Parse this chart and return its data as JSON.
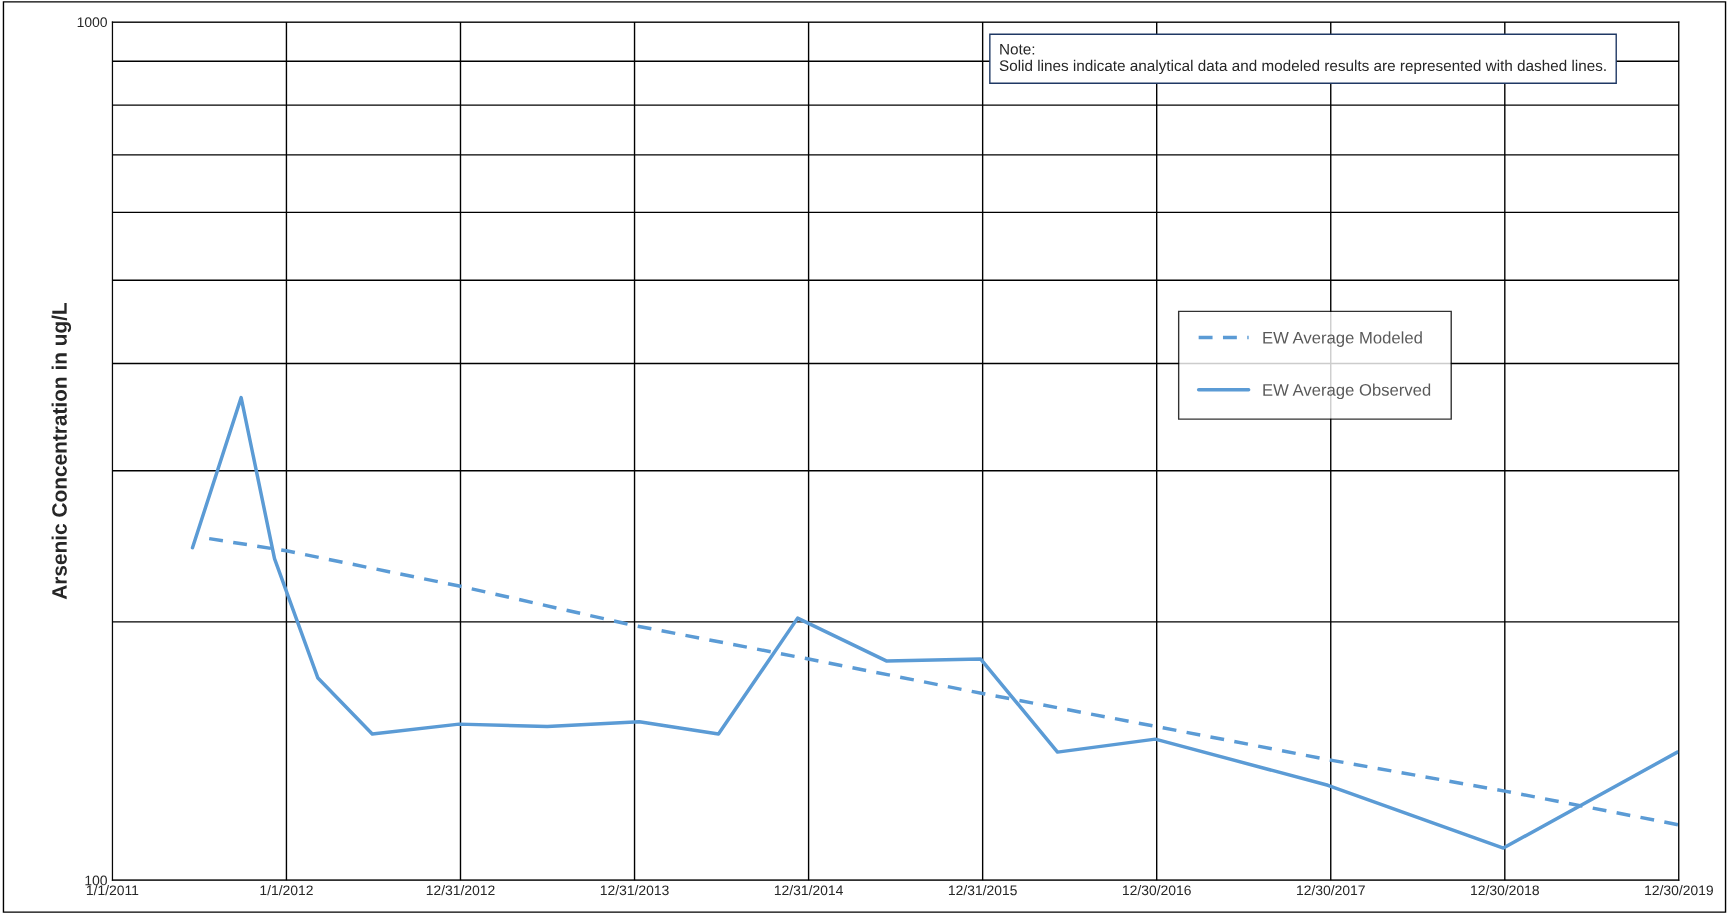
{
  "chart_data": {
    "type": "line",
    "ylabel": "Arsenic Concentration in ug/L",
    "annotations": [
      "Note:\nSolid lines indicate analytical data and modeled results are represented with dashed lines."
    ],
    "series": [
      {
        "name": "EW Average Modeled",
        "color": "#5b9bd5",
        "line_style": "dashed",
        "x": [
          "2011-07-23",
          "2012-01-01",
          "2012-12-31",
          "2013-12-31",
          "2014-12-31",
          "2015-12-31",
          "2016-12-30",
          "2017-12-30",
          "2018-12-30",
          "2019-12-30"
        ],
        "values": [
          250,
          242,
          220,
          198,
          181,
          165,
          151,
          138,
          127,
          116
        ]
      },
      {
        "name": "EW Average Observed",
        "color": "#5b9bd5",
        "line_style": "solid",
        "x": [
          "2011-06-18",
          "2011-09-28",
          "2011-12-07",
          "2012-03-07",
          "2012-06-29",
          "2012-12-28",
          "2013-07-01",
          "2014-01-10",
          "2014-06-25",
          "2014-12-08",
          "2015-06-13",
          "2015-12-27",
          "2016-06-05",
          "2016-12-27",
          "2017-12-24",
          "2018-12-27",
          "2019-12-27"
        ],
        "values": [
          244,
          365,
          237,
          172,
          148,
          152,
          151,
          153,
          148,
          202,
          180,
          181,
          141,
          146,
          129,
          109,
          141
        ]
      }
    ],
    "log": "y",
    "xlim": [
      "2011-01-01",
      "2019-12-30"
    ],
    "xticks": [
      {
        "value": "2011-01-01",
        "label": "1/1/2011"
      },
      {
        "value": "2012-01-01",
        "label": "1/1/2012"
      },
      {
        "value": "2012-12-31",
        "label": "12/31/2012"
      },
      {
        "value": "2013-12-31",
        "label": "12/31/2013"
      },
      {
        "value": "2014-12-31",
        "label": "12/31/2014"
      },
      {
        "value": "2015-12-31",
        "label": "12/31/2015"
      },
      {
        "value": "2016-12-30",
        "label": "12/30/2016"
      },
      {
        "value": "2017-12-30",
        "label": "12/30/2017"
      },
      {
        "value": "2018-12-30",
        "label": "12/30/2018"
      },
      {
        "value": "2019-12-30",
        "label": "12/30/2019"
      }
    ],
    "ylim": [
      100,
      1000
    ],
    "yticks": [
      100,
      {
        "value": 200,
        "label": null
      },
      {
        "value": 300,
        "label": null
      },
      {
        "value": 400,
        "label": null
      },
      {
        "value": 500,
        "label": null
      },
      {
        "value": 600,
        "label": null
      },
      {
        "value": 700,
        "label": null
      },
      {
        "value": 800,
        "label": null
      },
      {
        "value": 900,
        "label": null
      },
      1000
    ],
    "grid": true,
    "legend": "center right",
    "marker": "none"
  }
}
